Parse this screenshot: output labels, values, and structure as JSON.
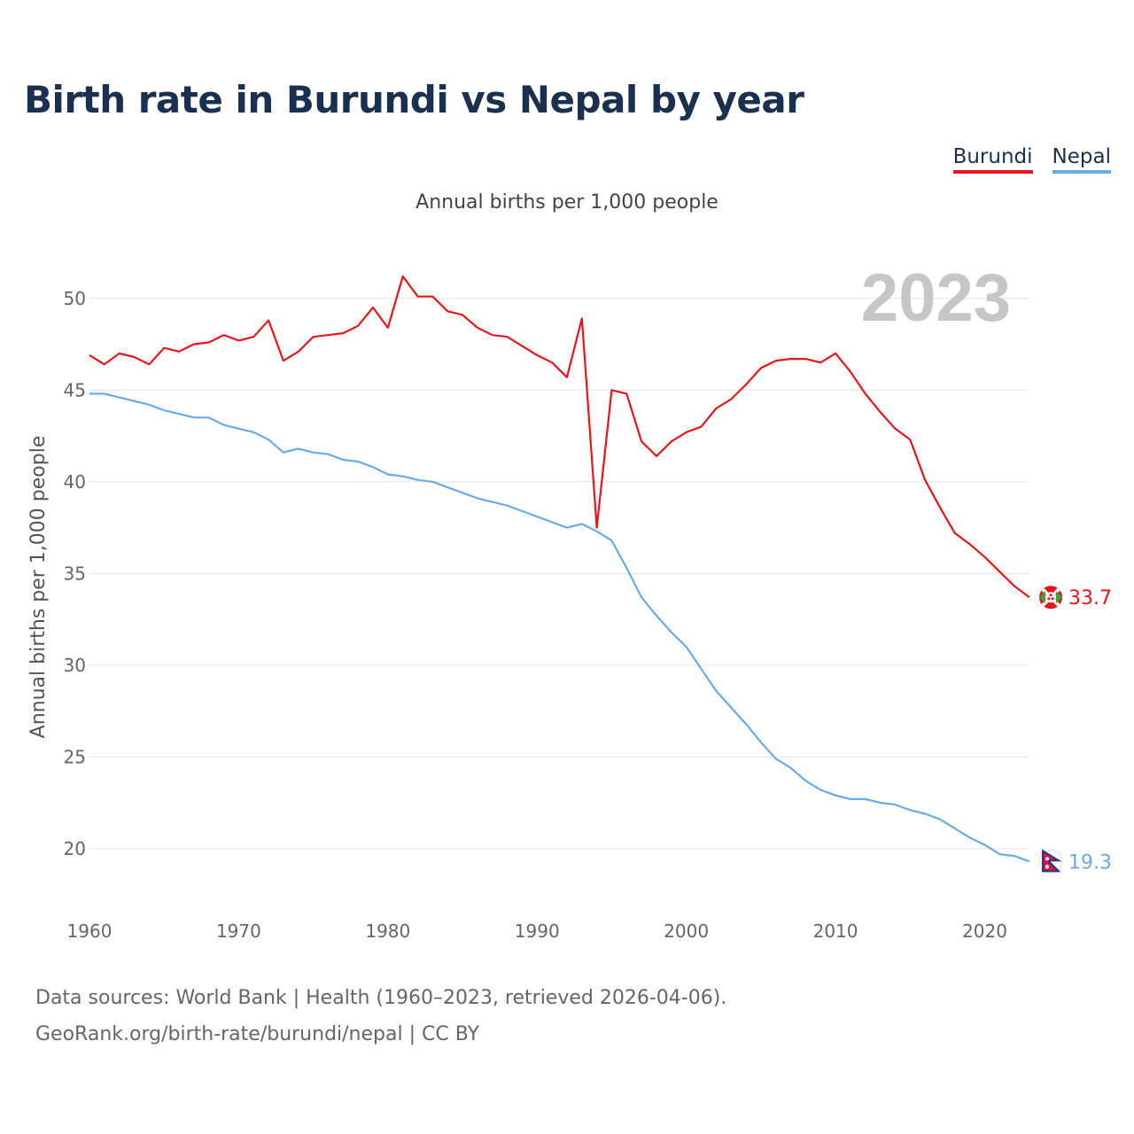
{
  "title": "Birth rate in Burundi vs Nepal by year",
  "subtitle": "Annual births per 1,000 people",
  "legend": [
    {
      "label": "Burundi",
      "color": "#e8141b"
    },
    {
      "label": "Nepal",
      "color": "#6aaae6"
    }
  ],
  "year_watermark": "2023",
  "end_labels": {
    "burundi": "33.7",
    "nepal": "19.3"
  },
  "footer": {
    "line1": "Data sources: World Bank | Health (1960–2023, retrieved 2026-04-06).",
    "line2": "GeoRank.org/birth-rate/burundi/nepal | CC BY"
  },
  "chart_data": {
    "type": "line",
    "title": "Birth rate in Burundi vs Nepal by year",
    "ylabel": "Annual births per 1,000 people",
    "xlabel": "",
    "xlim": [
      1960,
      2023
    ],
    "ylim": [
      17,
      52.5
    ],
    "xticks": [
      1960,
      1970,
      1980,
      1990,
      2000,
      2010,
      2020
    ],
    "yticks": [
      20,
      25,
      30,
      35,
      40,
      45,
      50
    ],
    "grid": true,
    "legend_position": "top-right",
    "x": [
      1960,
      1961,
      1962,
      1963,
      1964,
      1965,
      1966,
      1967,
      1968,
      1969,
      1970,
      1971,
      1972,
      1973,
      1974,
      1975,
      1976,
      1977,
      1978,
      1979,
      1980,
      1981,
      1982,
      1983,
      1984,
      1985,
      1986,
      1987,
      1988,
      1989,
      1990,
      1991,
      1992,
      1993,
      1994,
      1995,
      1996,
      1997,
      1998,
      1999,
      2000,
      2001,
      2002,
      2003,
      2004,
      2005,
      2006,
      2007,
      2008,
      2009,
      2010,
      2011,
      2012,
      2013,
      2014,
      2015,
      2016,
      2017,
      2018,
      2019,
      2020,
      2021,
      2022,
      2023
    ],
    "series": [
      {
        "name": "Burundi",
        "color": "#e8141b",
        "values": [
          46.9,
          46.4,
          47.0,
          46.8,
          46.4,
          47.3,
          47.1,
          47.5,
          47.6,
          48.0,
          47.7,
          47.9,
          48.8,
          46.6,
          47.1,
          47.9,
          48.0,
          48.1,
          48.5,
          49.5,
          48.4,
          51.2,
          50.1,
          50.1,
          49.3,
          49.1,
          48.4,
          48.0,
          47.9,
          47.4,
          46.9,
          46.5,
          45.7,
          48.9,
          37.5,
          45.0,
          44.8,
          42.2,
          41.4,
          42.2,
          42.7,
          43.0,
          44.0,
          44.5,
          45.3,
          46.2,
          46.6,
          46.7,
          46.7,
          46.5,
          47.0,
          46.0,
          44.8,
          43.8,
          42.9,
          42.3,
          40.1,
          38.6,
          37.2,
          36.6,
          35.9,
          35.1,
          34.3,
          33.7
        ]
      },
      {
        "name": "Nepal",
        "color": "#6aaae6",
        "values": [
          44.8,
          44.8,
          44.6,
          44.4,
          44.2,
          43.9,
          43.7,
          43.5,
          43.5,
          43.1,
          42.9,
          42.7,
          42.3,
          41.6,
          41.8,
          41.6,
          41.5,
          41.2,
          41.1,
          40.8,
          40.4,
          40.3,
          40.1,
          40.0,
          39.7,
          39.4,
          39.1,
          38.9,
          38.7,
          38.4,
          38.1,
          37.8,
          37.5,
          37.7,
          37.3,
          36.8,
          35.3,
          33.7,
          32.7,
          31.8,
          31.0,
          29.8,
          28.6,
          27.7,
          26.8,
          25.8,
          24.9,
          24.4,
          23.7,
          23.2,
          22.9,
          22.7,
          22.7,
          22.5,
          22.4,
          22.1,
          21.9,
          21.6,
          21.1,
          20.6,
          20.2,
          19.7,
          19.6,
          19.3
        ]
      }
    ]
  }
}
